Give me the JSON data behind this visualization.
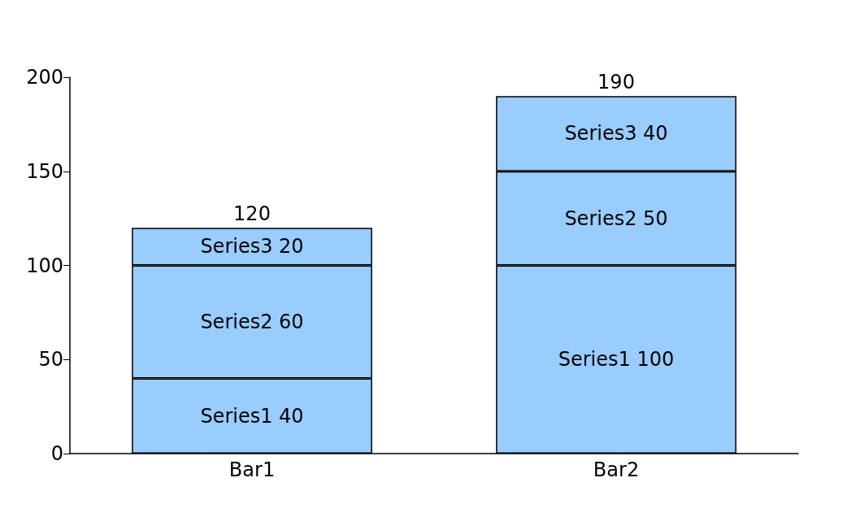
{
  "chart_data": {
    "type": "bar",
    "stacked": true,
    "categories": [
      "Bar1",
      "Bar2"
    ],
    "series": [
      {
        "color": "#99ccff",
        "values": [
          40,
          100
        ],
        "value_labels": [
          "Series1 40",
          "Series1 100"
        ]
      },
      {
        "color": "#99ccff",
        "values": [
          60,
          50
        ],
        "value_labels": [
          "Series2 60",
          "Series2 50"
        ]
      },
      {
        "color": "#99ccff",
        "values": [
          20,
          40
        ],
        "value_labels": [
          "Series3 20",
          "Series3 40"
        ]
      }
    ],
    "ylim": [
      0,
      200
    ],
    "yticks": [
      0,
      50,
      100,
      150,
      200
    ],
    "grid": false,
    "totals": [
      "120",
      "190"
    ]
  }
}
